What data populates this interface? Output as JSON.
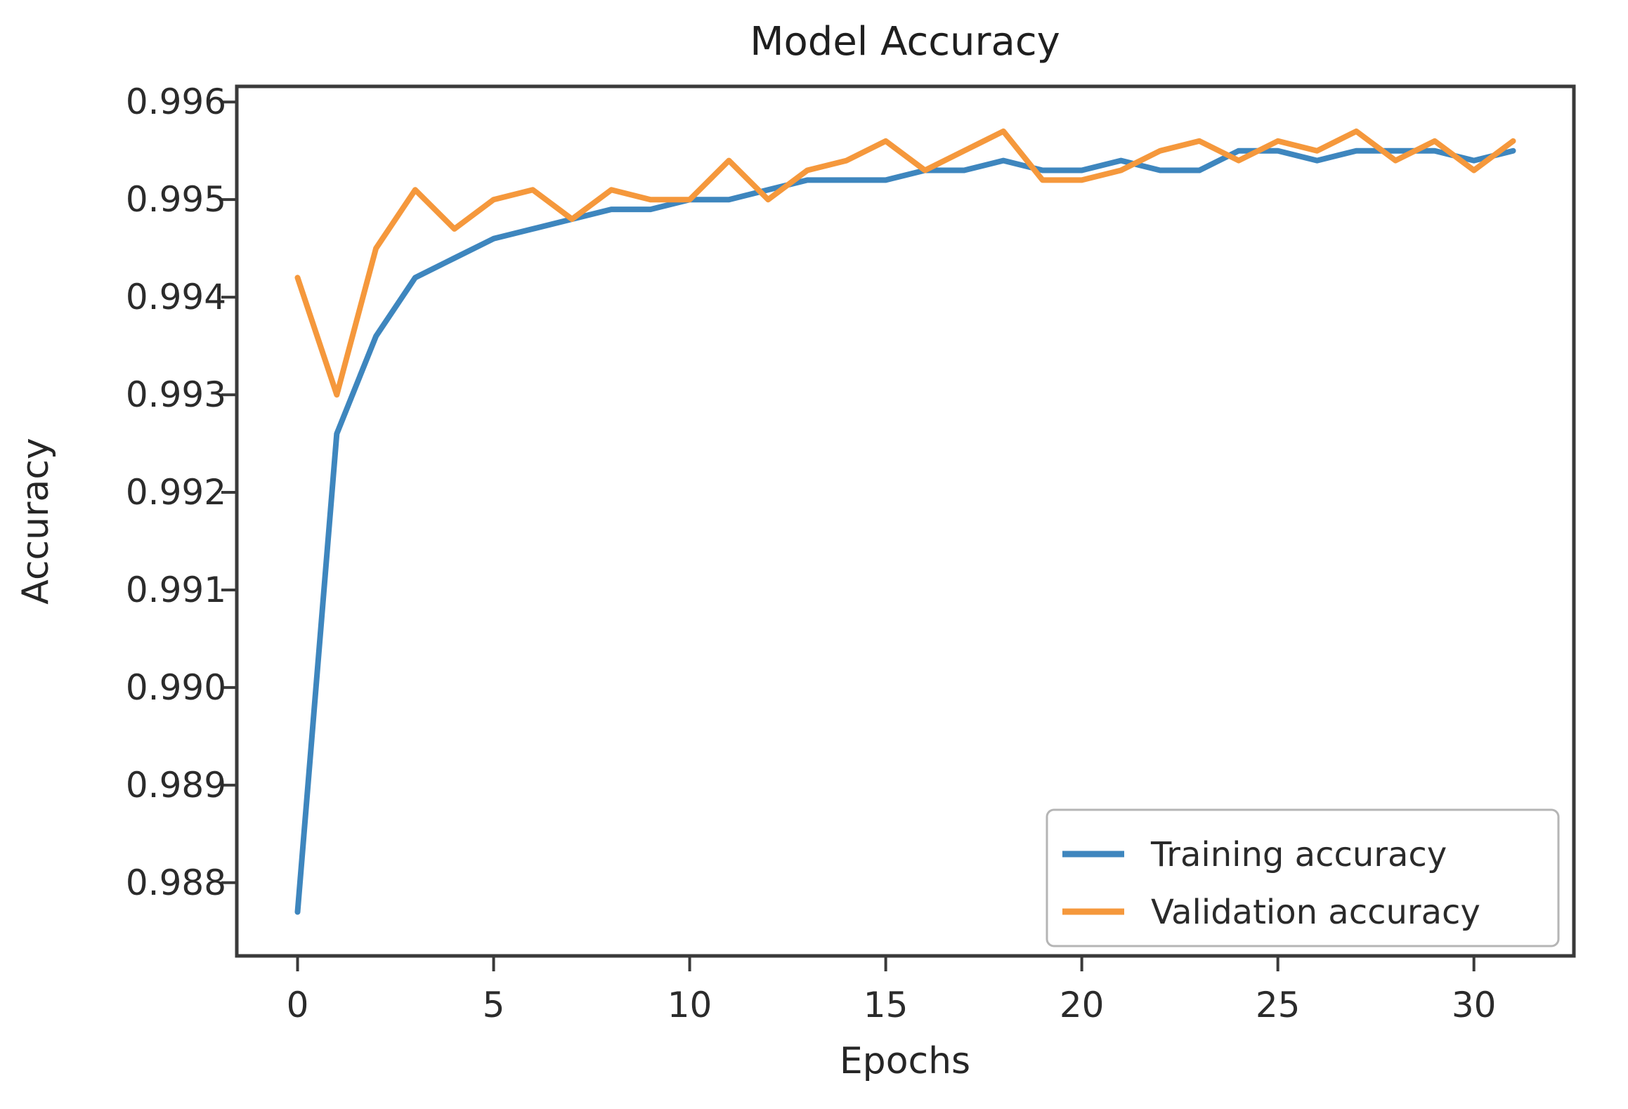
{
  "figure": {
    "title": "Model Accuracy",
    "xlabel": "Epochs",
    "ylabel": "Accuracy"
  },
  "legend": {
    "position": "lower right",
    "items": [
      {
        "label": "Training accuracy"
      },
      {
        "label": "Validation accuracy"
      }
    ]
  },
  "chart_data": {
    "type": "line",
    "title": "Model Accuracy",
    "xlabel": "Epochs",
    "ylabel": "Accuracy",
    "x": [
      0,
      1,
      2,
      3,
      4,
      5,
      6,
      7,
      8,
      9,
      10,
      11,
      12,
      13,
      14,
      15,
      16,
      17,
      18,
      19,
      20,
      21,
      22,
      23,
      24,
      25,
      26,
      27,
      28,
      29,
      30,
      31
    ],
    "series": [
      {
        "name": "Training accuracy",
        "color": "#3e86be",
        "values": [
          0.9877,
          0.9926,
          0.9936,
          0.9942,
          0.9944,
          0.9946,
          0.9947,
          0.9948,
          0.9949,
          0.9949,
          0.995,
          0.995,
          0.9951,
          0.9952,
          0.9952,
          0.9952,
          0.9953,
          0.9953,
          0.9954,
          0.9953,
          0.9953,
          0.9954,
          0.9953,
          0.9953,
          0.9955,
          0.9955,
          0.9954,
          0.9955,
          0.9955,
          0.9955,
          0.9954,
          0.9955
        ]
      },
      {
        "name": "Validation accuracy",
        "color": "#f5983c",
        "values": [
          0.9942,
          0.993,
          0.9945,
          0.9951,
          0.9947,
          0.995,
          0.9951,
          0.9948,
          0.9951,
          0.995,
          0.995,
          0.9954,
          0.995,
          0.9953,
          0.9954,
          0.9956,
          0.9953,
          0.9955,
          0.9957,
          0.9952,
          0.9952,
          0.9953,
          0.9955,
          0.9956,
          0.9954,
          0.9956,
          0.9955,
          0.9957,
          0.9954,
          0.9956,
          0.9953,
          0.9956
        ]
      }
    ],
    "xlim": [
      -1.55,
      32.55
    ],
    "ylim": [
      0.98725,
      0.99616
    ],
    "xticks": [
      0,
      5,
      10,
      15,
      20,
      25,
      30
    ],
    "yticks": [
      0.988,
      0.989,
      0.99,
      0.991,
      0.992,
      0.993,
      0.994,
      0.995,
      0.996
    ],
    "grid": false,
    "legend_position": "lower right"
  }
}
